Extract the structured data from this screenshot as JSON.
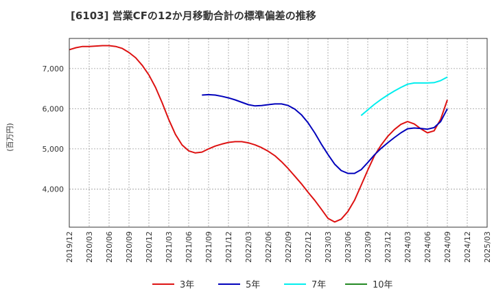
{
  "chart_data": {
    "type": "line",
    "title": "[6103]  営業CFの12か月移動合計の標準偏差の推移",
    "ylabel": "(百万円)",
    "xlabel": "",
    "ylim": [
      3050,
      7750
    ],
    "yticks": [
      4000,
      5000,
      6000,
      7000
    ],
    "ytick_labels": [
      "4,000",
      "5,000",
      "6,000",
      "7,000"
    ],
    "x_range": [
      "2019-12",
      "2025-03"
    ],
    "x_tick_labels": [
      "2019/12",
      "2020/03",
      "2020/06",
      "2020/09",
      "2020/12",
      "2021/03",
      "2021/06",
      "2021/09",
      "2021/12",
      "2022/03",
      "2022/06",
      "2022/09",
      "2022/12",
      "2023/03",
      "2023/06",
      "2023/09",
      "2023/12",
      "2024/03",
      "2024/06",
      "2024/09",
      "2024/12",
      "2025/03"
    ],
    "grid": true,
    "legend_position": "bottom",
    "series": [
      {
        "name": "3年",
        "color": "#dd1111",
        "points": [
          [
            "2019-12",
            7470
          ],
          [
            "2020-01",
            7520
          ],
          [
            "2020-02",
            7550
          ],
          [
            "2020-03",
            7550
          ],
          [
            "2020-04",
            7560
          ],
          [
            "2020-05",
            7570
          ],
          [
            "2020-06",
            7570
          ],
          [
            "2020-07",
            7550
          ],
          [
            "2020-08",
            7500
          ],
          [
            "2020-09",
            7400
          ],
          [
            "2020-10",
            7270
          ],
          [
            "2020-11",
            7080
          ],
          [
            "2020-12",
            6840
          ],
          [
            "2021-01",
            6530
          ],
          [
            "2021-02",
            6150
          ],
          [
            "2021-03",
            5730
          ],
          [
            "2021-04",
            5360
          ],
          [
            "2021-05",
            5100
          ],
          [
            "2021-06",
            4950
          ],
          [
            "2021-07",
            4900
          ],
          [
            "2021-08",
            4920
          ],
          [
            "2021-09",
            5000
          ],
          [
            "2021-10",
            5070
          ],
          [
            "2021-11",
            5120
          ],
          [
            "2021-12",
            5160
          ],
          [
            "2022-01",
            5180
          ],
          [
            "2022-02",
            5180
          ],
          [
            "2022-03",
            5150
          ],
          [
            "2022-04",
            5100
          ],
          [
            "2022-05",
            5030
          ],
          [
            "2022-06",
            4940
          ],
          [
            "2022-07",
            4830
          ],
          [
            "2022-08",
            4680
          ],
          [
            "2022-09",
            4510
          ],
          [
            "2022-10",
            4320
          ],
          [
            "2022-11",
            4130
          ],
          [
            "2022-12",
            3920
          ],
          [
            "2023-01",
            3720
          ],
          [
            "2023-02",
            3500
          ],
          [
            "2023-03",
            3270
          ],
          [
            "2023-04",
            3180
          ],
          [
            "2023-05",
            3250
          ],
          [
            "2023-06",
            3440
          ],
          [
            "2023-07",
            3720
          ],
          [
            "2023-08",
            4090
          ],
          [
            "2023-09",
            4470
          ],
          [
            "2023-10",
            4830
          ],
          [
            "2023-11",
            5090
          ],
          [
            "2023-12",
            5310
          ],
          [
            "2024-01",
            5480
          ],
          [
            "2024-02",
            5610
          ],
          [
            "2024-03",
            5680
          ],
          [
            "2024-04",
            5620
          ],
          [
            "2024-05",
            5500
          ],
          [
            "2024-06",
            5400
          ],
          [
            "2024-07",
            5450
          ],
          [
            "2024-08",
            5740
          ],
          [
            "2024-09",
            6220
          ]
        ]
      },
      {
        "name": "5年",
        "color": "#0000bb",
        "points": [
          [
            "2021-08",
            6340
          ],
          [
            "2021-09",
            6350
          ],
          [
            "2021-10",
            6340
          ],
          [
            "2021-11",
            6310
          ],
          [
            "2021-12",
            6270
          ],
          [
            "2022-01",
            6220
          ],
          [
            "2022-02",
            6160
          ],
          [
            "2022-03",
            6100
          ],
          [
            "2022-04",
            6070
          ],
          [
            "2022-05",
            6080
          ],
          [
            "2022-06",
            6100
          ],
          [
            "2022-07",
            6120
          ],
          [
            "2022-08",
            6120
          ],
          [
            "2022-09",
            6080
          ],
          [
            "2022-10",
            5990
          ],
          [
            "2022-11",
            5850
          ],
          [
            "2022-12",
            5650
          ],
          [
            "2023-01",
            5400
          ],
          [
            "2023-02",
            5120
          ],
          [
            "2023-03",
            4860
          ],
          [
            "2023-04",
            4620
          ],
          [
            "2023-05",
            4460
          ],
          [
            "2023-06",
            4390
          ],
          [
            "2023-07",
            4390
          ],
          [
            "2023-08",
            4480
          ],
          [
            "2023-09",
            4660
          ],
          [
            "2023-10",
            4850
          ],
          [
            "2023-11",
            5010
          ],
          [
            "2023-12",
            5150
          ],
          [
            "2024-01",
            5280
          ],
          [
            "2024-02",
            5400
          ],
          [
            "2024-03",
            5500
          ],
          [
            "2024-04",
            5520
          ],
          [
            "2024-05",
            5510
          ],
          [
            "2024-06",
            5490
          ],
          [
            "2024-07",
            5530
          ],
          [
            "2024-08",
            5680
          ],
          [
            "2024-09",
            6000
          ]
        ]
      },
      {
        "name": "7年",
        "color": "#00eeee",
        "points": [
          [
            "2023-08",
            5830
          ],
          [
            "2023-09",
            5970
          ],
          [
            "2023-10",
            6110
          ],
          [
            "2023-11",
            6230
          ],
          [
            "2023-12",
            6340
          ],
          [
            "2024-01",
            6440
          ],
          [
            "2024-02",
            6530
          ],
          [
            "2024-03",
            6610
          ],
          [
            "2024-04",
            6640
          ],
          [
            "2024-05",
            6640
          ],
          [
            "2024-06",
            6640
          ],
          [
            "2024-07",
            6650
          ],
          [
            "2024-08",
            6700
          ],
          [
            "2024-09",
            6790
          ]
        ]
      },
      {
        "name": "10年",
        "color": "#228822",
        "points": []
      }
    ]
  }
}
